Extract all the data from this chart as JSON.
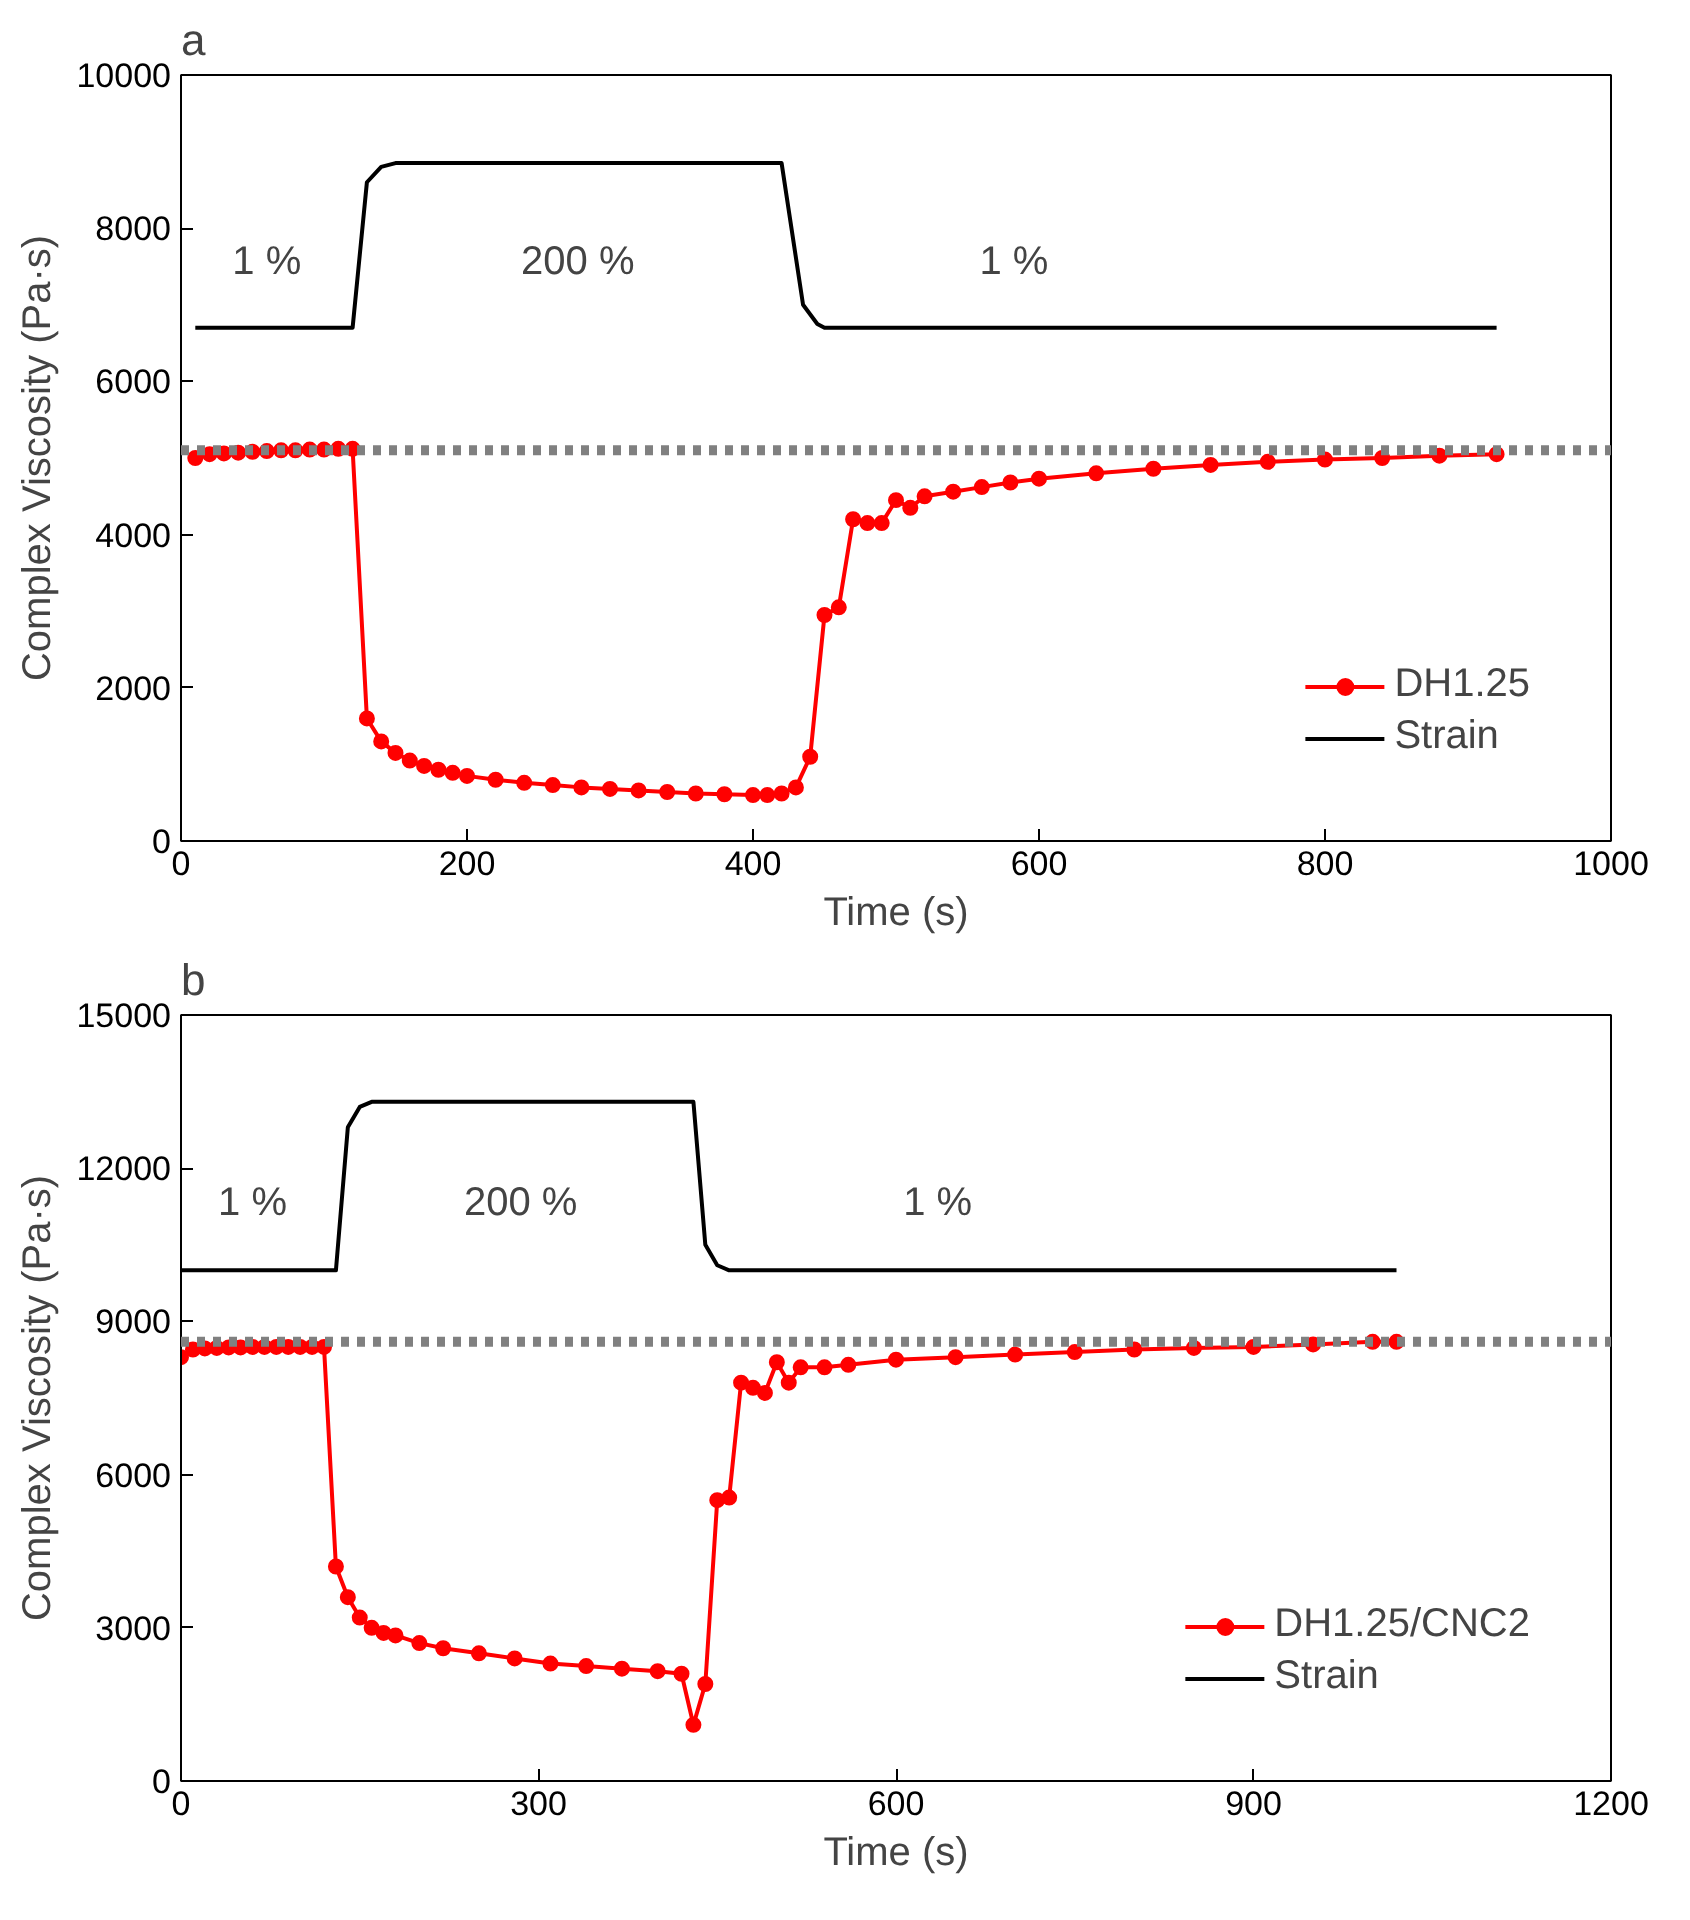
{
  "chart_data": [
    {
      "type": "line",
      "title": "a",
      "xlabel": "Time (s)",
      "ylabel": "Complex Viscosity (Pa·s)",
      "xlim": [
        0,
        1000
      ],
      "xticks": [
        0,
        200,
        400,
        600,
        800,
        1000
      ],
      "ylim": [
        0,
        10000
      ],
      "yticks": [
        0,
        2000,
        4000,
        6000,
        8000,
        10000
      ],
      "grid": false,
      "legend": "bottom right",
      "marker": "circle",
      "line_style": "solid",
      "series": [
        {
          "name": "DH1.25",
          "color": "#ff0000",
          "x": [
            10,
            20,
            30,
            40,
            50,
            60,
            70,
            80,
            90,
            100,
            110,
            120,
            130,
            140,
            150,
            160,
            170,
            180,
            190,
            200,
            220,
            240,
            260,
            280,
            300,
            320,
            340,
            360,
            380,
            400,
            410,
            420,
            430,
            440,
            450,
            460,
            470,
            480,
            490,
            500,
            510,
            520,
            540,
            560,
            580,
            600,
            640,
            680,
            720,
            760,
            800,
            840,
            880,
            920
          ],
          "values": [
            5000,
            5050,
            5060,
            5070,
            5080,
            5090,
            5100,
            5100,
            5110,
            5110,
            5120,
            5120,
            1600,
            1300,
            1150,
            1050,
            980,
            930,
            890,
            850,
            800,
            760,
            730,
            700,
            680,
            660,
            640,
            620,
            610,
            600,
            600,
            620,
            700,
            1100,
            2950,
            3050,
            4200,
            4150,
            4150,
            4450,
            4350,
            4500,
            4560,
            4620,
            4680,
            4730,
            4800,
            4860,
            4910,
            4950,
            4980,
            5000,
            5030,
            5050
          ]
        },
        {
          "name": "Strain",
          "color": "#000000",
          "marker": "none",
          "x": [
            10,
            120,
            130,
            140,
            150,
            420,
            435,
            445,
            450,
            920
          ],
          "values": [
            6700,
            6700,
            8600,
            8800,
            8850,
            8850,
            7000,
            6750,
            6700,
            6700
          ]
        }
      ],
      "ref_lines": [
        {
          "axis": "y",
          "value": 5100,
          "color": "#808080",
          "line_style": "dotted"
        }
      ],
      "annotations": [
        "1 %",
        "200 %",
        "1 %"
      ]
    },
    {
      "type": "line",
      "title": "b",
      "xlabel": "Time (s)",
      "ylabel": "Complex Viscosity (Pa·s)",
      "xlim": [
        0,
        1200
      ],
      "xticks": [
        0,
        300,
        600,
        900,
        1200
      ],
      "ylim": [
        0,
        15000
      ],
      "yticks": [
        0,
        3000,
        6000,
        9000,
        12000,
        15000
      ],
      "grid": false,
      "legend": "bottom right",
      "marker": "circle",
      "line_style": "solid",
      "series": [
        {
          "name": "DH1.25/CNC2",
          "color": "#ff0000",
          "x": [
            0,
            10,
            20,
            30,
            40,
            50,
            60,
            70,
            80,
            90,
            100,
            110,
            120,
            130,
            140,
            150,
            160,
            170,
            180,
            200,
            220,
            250,
            280,
            310,
            340,
            370,
            400,
            420,
            430,
            440,
            450,
            460,
            470,
            480,
            490,
            500,
            510,
            520,
            540,
            560,
            600,
            650,
            700,
            750,
            800,
            850,
            900,
            950,
            1000,
            1020
          ],
          "values": [
            8300,
            8450,
            8470,
            8480,
            8490,
            8490,
            8500,
            8500,
            8500,
            8500,
            8500,
            8500,
            8500,
            4200,
            3600,
            3200,
            3000,
            2900,
            2850,
            2700,
            2600,
            2500,
            2400,
            2300,
            2250,
            2200,
            2150,
            2100,
            1100,
            1900,
            5500,
            5550,
            7800,
            7700,
            7600,
            8200,
            7800,
            8100,
            8100,
            8150,
            8250,
            8300,
            8350,
            8400,
            8450,
            8480,
            8500,
            8550,
            8600,
            8600
          ]
        },
        {
          "name": "Strain",
          "color": "#000000",
          "marker": "none",
          "x": [
            0,
            130,
            140,
            150,
            160,
            430,
            440,
            450,
            460,
            1020
          ],
          "values": [
            10000,
            10000,
            12800,
            13200,
            13300,
            13300,
            10500,
            10100,
            10000,
            10000
          ]
        }
      ],
      "ref_lines": [
        {
          "axis": "y",
          "value": 8600,
          "color": "#808080",
          "line_style": "dotted"
        }
      ],
      "annotations": [
        "1 %",
        "200 %",
        "1 %"
      ]
    }
  ]
}
